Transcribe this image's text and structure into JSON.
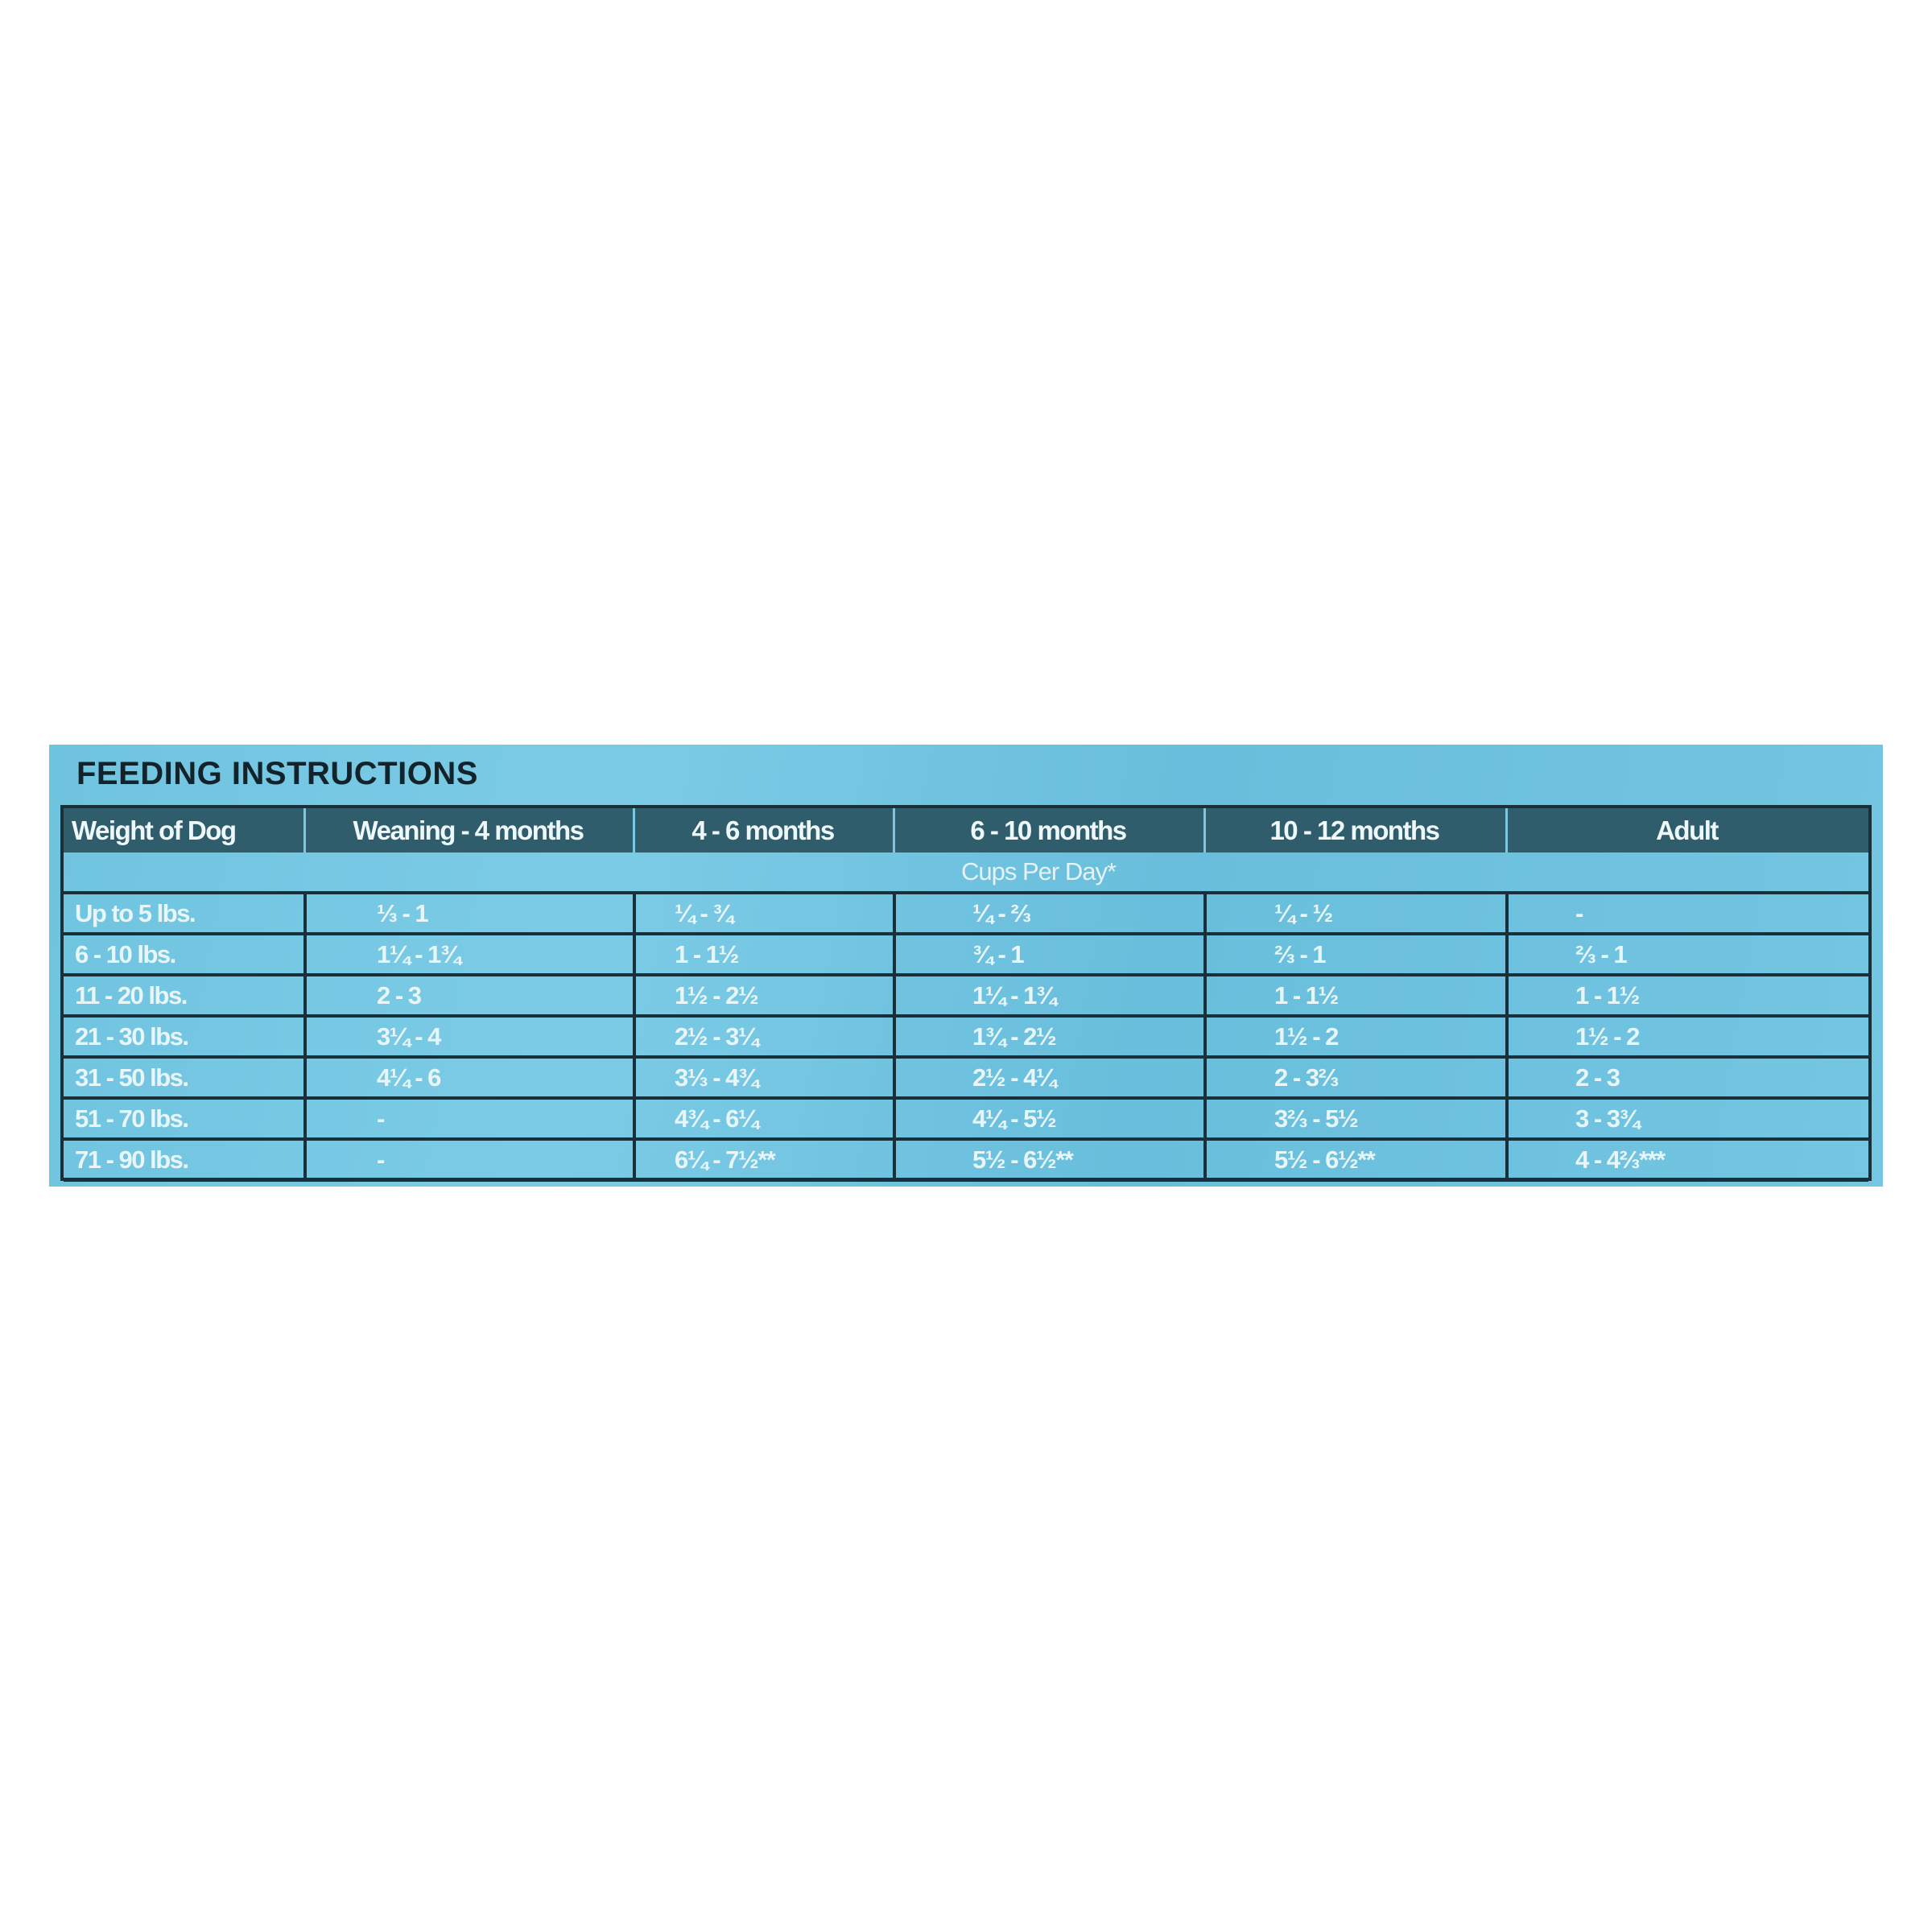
{
  "title": "FEEDING INSTRUCTIONS",
  "table": {
    "headers": [
      "Weight of Dog",
      "Weaning - 4 months",
      "4 - 6 months",
      "6 - 10 months",
      "10 - 12 months",
      "Adult"
    ],
    "subheader": "Cups Per Day*",
    "rows": [
      [
        "Up to 5 lbs.",
        "⅓ - 1",
        "¼ - ¾",
        "¼ - ⅔",
        "¼ - ½",
        "-"
      ],
      [
        "6 - 10 lbs.",
        "1¼ - 1¾",
        "1 - 1½",
        "¾ - 1",
        "⅔ - 1",
        "⅔ - 1"
      ],
      [
        "11 - 20 lbs.",
        "2 - 3",
        "1½ - 2½",
        "1¼ - 1¾",
        "1 - 1½",
        "1 - 1½"
      ],
      [
        "21 - 30 lbs.",
        "3¼ - 4",
        "2½ - 3¼",
        "1¾ - 2½",
        "1½ - 2",
        "1½ - 2"
      ],
      [
        "31 - 50 lbs.",
        "4¼ - 6",
        "3⅓ - 4¾",
        "2½ - 4¼",
        "2 - 3⅔",
        "2 - 3"
      ],
      [
        "51 - 70 lbs.",
        "-",
        "4¾ - 6¼",
        "4¼ - 5½",
        "3⅔ - 5½",
        "3 - 3¾"
      ],
      [
        "71 - 90 lbs.",
        "-",
        "6¼ - 7½**",
        "5½ - 6½**",
        "5½ - 6½**",
        "4 - 4⅔***"
      ]
    ]
  },
  "colors": {
    "panel": "#6fc4e0",
    "header": "#2f5d6c",
    "rule": "#17303a",
    "text": "#e8f6fa"
  }
}
